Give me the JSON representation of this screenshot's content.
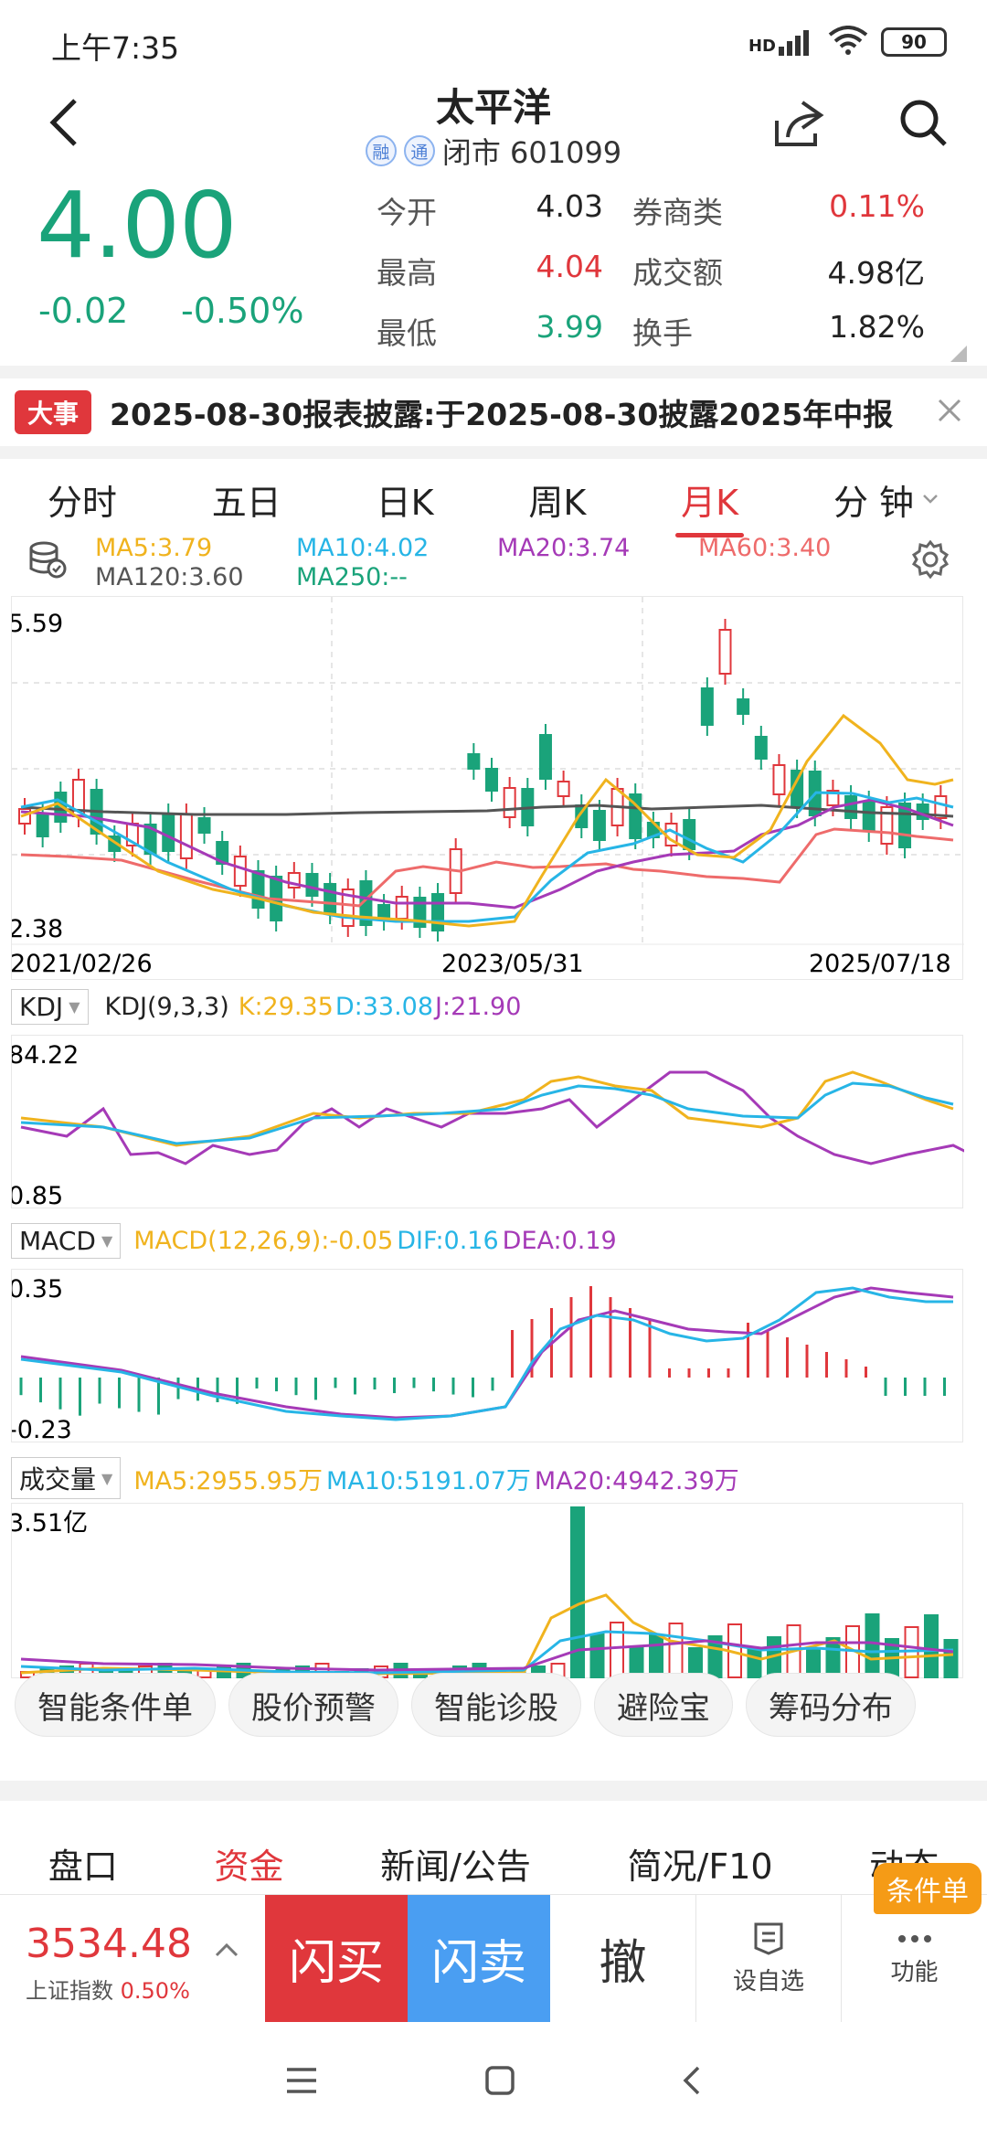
{
  "status": {
    "time": "上午7:35",
    "signal": "HD",
    "battery": "90"
  },
  "header": {
    "title": "太平洋",
    "tag1": "融",
    "tag2": "通",
    "subtitle": "闭市 601099"
  },
  "quote": {
    "price": "4.00",
    "change": "-0.02",
    "change_pct": "-0.50%",
    "rows": [
      {
        "l1": "今开",
        "v1": "4.03",
        "l2": "券商类",
        "v2": "0.11%"
      },
      {
        "l1": "最高",
        "v1": "4.04",
        "l2": "成交额",
        "v2": "4.98亿"
      },
      {
        "l1": "最低",
        "v1": "3.99",
        "l2": "换手",
        "v2": "1.82%"
      }
    ]
  },
  "news": {
    "badge": "大事",
    "text": "2025-08-30报表披露:于2025-08-30披露2025年中报"
  },
  "tabs": [
    "分时",
    "五日",
    "日K",
    "周K",
    "月K",
    "分 钟"
  ],
  "active_tab": 4,
  "ma": {
    "ma5": "MA5:3.79",
    "ma10": "MA10:4.02",
    "ma20": "MA20:3.74",
    "ma60": "MA60:3.40",
    "ma120": "MA120:3.60",
    "ma250": "MA250:--"
  },
  "kline": {
    "y_max": "5.59",
    "y_min": "2.38",
    "date_start": "2021/02/26",
    "date_mid": "2023/05/31",
    "date_end": "2025/07/18"
  },
  "kdj": {
    "label": "KDJ",
    "params": "KDJ(9,3,3)",
    "k": "K:29.35",
    "d": "D:33.08",
    "j": "J:21.90",
    "y_max": "84.22",
    "y_min": "0.85"
  },
  "macd": {
    "label": "MACD",
    "params": "MACD(12,26,9):-0.05",
    "dif": "DIF:0.16",
    "dea": "DEA:0.19",
    "y_max": "0.35",
    "y_min": "-0.23"
  },
  "volume": {
    "label": "成交量",
    "ma5": "MA5:2955.95万",
    "ma10": "MA10:5191.07万",
    "ma20": "MA20:4942.39万",
    "y_max": "3.51亿"
  },
  "chips": [
    "智能条件单",
    "股价预警",
    "智能诊股",
    "避险宝",
    "筹码分布"
  ],
  "sub_tabs": [
    "盘口",
    "资金",
    "新闻/公告",
    "简况/F10",
    "动态"
  ],
  "sub_active": 1,
  "bottom": {
    "index_value": "3534.48",
    "index_name": "上证指数",
    "index_pct": "0.50%",
    "buy": "闪买",
    "sell": "闪卖",
    "cancel": "撤",
    "watch": "设自选",
    "func": "功能",
    "cond_badge": "条件单"
  },
  "colors": {
    "up": "#e0373c",
    "down": "#1aa37a",
    "ma5": "#f0b31e",
    "ma10": "#27b5e6",
    "ma20": "#a53ab7",
    "ma60": "#ee6b6b",
    "ma120": "#555555",
    "ma250": "#1aa37a"
  }
}
